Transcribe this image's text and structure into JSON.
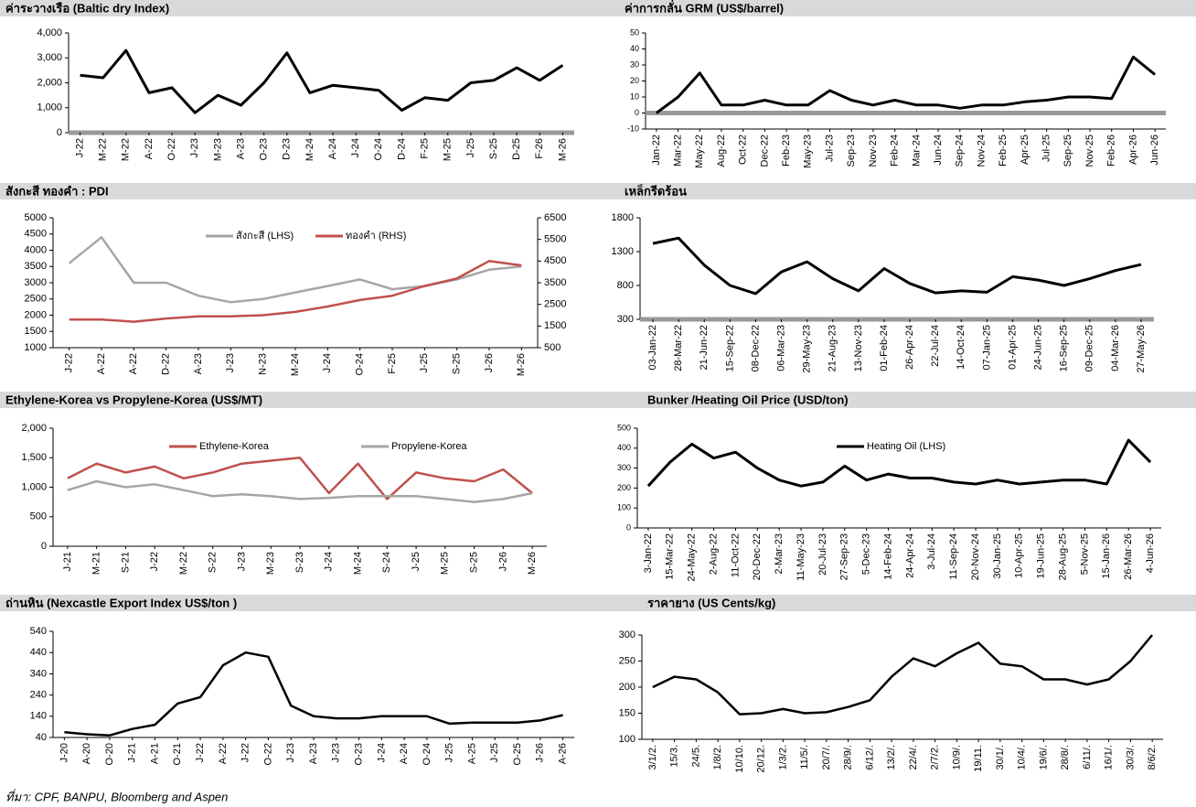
{
  "chart_data": [
    {
      "type": "line",
      "title": "ค่าระวางเรือ (Baltic dry Index)",
      "categories": [
        "J-22",
        "M-22",
        "M-22",
        "A-22",
        "O-22",
        "J-23",
        "M-23",
        "A-23",
        "O-23",
        "D-23",
        "M-24",
        "A-24",
        "J-24",
        "O-24",
        "D-24",
        "F-25",
        "M-25",
        "J-25",
        "S-25",
        "D-25",
        "F-26",
        "M-26"
      ],
      "series": [
        {
          "color": "#000000",
          "values": [
            2300,
            2200,
            3300,
            1600,
            1800,
            800,
            1500,
            1100,
            2000,
            3200,
            1600,
            1900,
            1800,
            1700,
            900,
            1400,
            1300,
            2000,
            2100,
            2600,
            2100,
            2700
          ]
        }
      ],
      "ylim": [
        0,
        4000
      ],
      "yticks": [
        0,
        {
          "value": 1000,
          "label": "1,000"
        },
        {
          "value": 2000,
          "label": "2,000"
        },
        {
          "value": 3000,
          "label": "3,000"
        },
        {
          "value": 4000,
          "label": "4,000"
        }
      ]
    },
    {
      "type": "line",
      "title": "ค่าการกลั่น GRM (US$/barrel)",
      "categories": [
        "Jan-22",
        "Mar-22",
        "May-22",
        "Aug-22",
        "Oct-22",
        "Dec-22",
        "Feb-23",
        "May-23",
        "Jul-23",
        "Sep-23",
        "Nov-23",
        "Feb-24",
        "Mar-24",
        "Jun-24",
        "Sep-24",
        "Nov-24",
        "Feb-25",
        "Apr-25",
        "Jul-25",
        "Sep-25",
        "Nov-25",
        "Feb-26",
        "Apr-26",
        "Jun-26"
      ],
      "series": [
        {
          "color": "#000000",
          "values": [
            0,
            10,
            25,
            5,
            5,
            8,
            5,
            5,
            14,
            8,
            5,
            8,
            5,
            5,
            3,
            5,
            5,
            7,
            8,
            10,
            10,
            9,
            35,
            24
          ]
        }
      ],
      "ylim": [
        -10,
        50
      ],
      "yticks": [
        -10,
        0,
        10,
        20,
        30,
        40,
        50
      ]
    },
    {
      "type": "line",
      "title": "สังกะสี ทองคำ : PDI",
      "categories": [
        "J-22",
        "A-22",
        "A-22",
        "D-22",
        "A-23",
        "J-23",
        "N-23",
        "M-24",
        "J-24",
        "O-24",
        "F-25",
        "J-25",
        "S-25",
        "J-26",
        "M-26"
      ],
      "series": [
        {
          "name": "สังกะสี (LHS)",
          "color": "#a6a6a6",
          "values": [
            3600,
            4400,
            3000,
            3000,
            2600,
            2400,
            2500,
            2700,
            2900,
            3100,
            2800,
            2900,
            3100,
            3400,
            3500
          ]
        },
        {
          "name": "ทองคำ (RHS)",
          "color": "#c0504d",
          "axis": "y2",
          "values": [
            1800,
            1800,
            1700,
            1850,
            1950,
            1950,
            2000,
            2150,
            2400,
            2700,
            2900,
            3350,
            3700,
            4500,
            4300
          ]
        }
      ],
      "ylim": [
        1000,
        5000
      ],
      "yticks": [
        1000,
        1500,
        2000,
        2500,
        3000,
        3500,
        4000,
        4500,
        5000
      ],
      "y2lim": [
        500,
        6500
      ],
      "y2ticks": [
        500,
        1500,
        2500,
        3500,
        4500,
        5500,
        6500
      ]
    },
    {
      "type": "line",
      "title": "เหล็กรีดร้อน",
      "categories": [
        "03-Jan-22",
        "28-Mar-22",
        "21-Jun-22",
        "15-Sep-22",
        "08-Dec-22",
        "06-Mar-23",
        "29-May-23",
        "21-Aug-23",
        "13-Nov-23",
        "01-Feb-24",
        "26-Apr-24",
        "22-Jul-24",
        "14-Oct-24",
        "07-Jan-25",
        "01-Apr-25",
        "24-Jun-25",
        "16-Sep-25",
        "09-Dec-25",
        "04-Mar-26",
        "27-May-26"
      ],
      "series": [
        {
          "color": "#000000",
          "values": [
            1420,
            1500,
            1100,
            800,
            680,
            1000,
            1150,
            900,
            720,
            1050,
            830,
            690,
            720,
            700,
            930,
            880,
            800,
            900,
            1020,
            1110
          ]
        }
      ],
      "ylim": [
        300,
        1800
      ],
      "yticks": [
        300,
        800,
        1300,
        1800
      ]
    },
    {
      "type": "line",
      "title": "Ethylene-Korea vs Propylene-Korea (US$/MT)",
      "categories": [
        "J-21",
        "M-21",
        "S-21",
        "J-22",
        "M-22",
        "S-22",
        "J-23",
        "M-23",
        "S-23",
        "J-24",
        "M-24",
        "S-24",
        "J-25",
        "M-25",
        "S-25",
        "J-26",
        "M-26"
      ],
      "series": [
        {
          "name": "Ethylene-Korea",
          "color": "#c0504d",
          "values": [
            1150,
            1400,
            1250,
            1350,
            1150,
            1250,
            1400,
            1450,
            1500,
            900,
            1400,
            800,
            1250,
            1150,
            1100,
            1300,
            900
          ]
        },
        {
          "name": "Propylene-Korea",
          "color": "#a6a6a6",
          "values": [
            950,
            1100,
            1000,
            1050,
            950,
            850,
            880,
            850,
            800,
            820,
            850,
            850,
            850,
            800,
            750,
            800,
            900
          ]
        }
      ],
      "ylim": [
        0,
        2000
      ],
      "yticks": [
        0,
        500,
        {
          "value": 1000,
          "label": "1,000"
        },
        {
          "value": 1500,
          "label": "1,500"
        },
        {
          "value": 2000,
          "label": "2,000"
        }
      ]
    },
    {
      "type": "line",
      "title": "Bunker /Heating Oil Price (USD/ton)",
      "categories": [
        "3-Jan-22",
        "15-Mar-22",
        "24-May-22",
        "2-Aug-22",
        "11-Oct-22",
        "20-Dec-22",
        "2-Mar-23",
        "11-May-23",
        "20-Jul-23",
        "27-Sep-23",
        "5-Dec-23",
        "14-Feb-24",
        "24-Apr-24",
        "3-Jul-24",
        "11-Sep-24",
        "20-Nov-24",
        "30-Jan-25",
        "10-Apr-25",
        "19-Jun-25",
        "28-Aug-25",
        "5-Nov-25",
        "15-Jan-26",
        "26-Mar-26",
        "4-Jun-26"
      ],
      "series": [
        {
          "name": "Heating Oil (LHS)",
          "color": "#000000",
          "values": [
            210,
            330,
            420,
            350,
            380,
            300,
            240,
            210,
            230,
            310,
            240,
            270,
            250,
            250,
            230,
            220,
            240,
            220,
            230,
            240,
            240,
            220,
            440,
            330
          ]
        }
      ],
      "ylim": [
        0,
        500
      ],
      "yticks": [
        0,
        100,
        200,
        300,
        400,
        500
      ]
    },
    {
      "type": "line",
      "title": "ถ่านหิน (Nexcastle Export Index  US$/ton )",
      "categories": [
        "J-20",
        "A-20",
        "O-20",
        "J-21",
        "A-21",
        "O-21",
        "J-22",
        "A-22",
        "J-22",
        "O-22",
        "J-23",
        "A-23",
        "J-23",
        "O-23",
        "J-24",
        "A-24",
        "O-24",
        "J-25",
        "A-25",
        "J-25",
        "O-25",
        "J-26",
        "A-26"
      ],
      "series": [
        {
          "color": "#000000",
          "values": [
            65,
            55,
            50,
            80,
            100,
            200,
            230,
            380,
            440,
            420,
            190,
            140,
            130,
            130,
            140,
            140,
            140,
            105,
            110,
            110,
            110,
            120,
            145
          ]
        }
      ],
      "ylim": [
        40,
        540
      ],
      "yticks": [
        40,
        140,
        240,
        340,
        440,
        540
      ]
    },
    {
      "type": "line",
      "title": "ราคายาง (US Cents/kg)",
      "categories": [
        "3/1/2.",
        "15/3.",
        "24/5.",
        "1/8/2.",
        "10/10.",
        "20/12.",
        "1/3/2.",
        "11/5/.",
        "20/7/.",
        "28/9/.",
        "6/12/.",
        "13/2/.",
        "22/4/.",
        "2/7/2.",
        "10/9/.",
        "19/11.",
        "30/1/.",
        "10/4/.",
        "19/6/.",
        "28/8/.",
        "6/11/.",
        "16/1/.",
        "30/3/.",
        "8/6/2."
      ],
      "series": [
        {
          "color": "#000000",
          "values": [
            200,
            220,
            215,
            190,
            148,
            150,
            158,
            150,
            152,
            162,
            175,
            220,
            255,
            240,
            265,
            285,
            245,
            240,
            215,
            215,
            205,
            215,
            250,
            300
          ]
        }
      ],
      "ylim": [
        100,
        300
      ],
      "yticks": [
        100,
        150,
        200,
        250,
        300
      ]
    }
  ],
  "source": "ที่มา: CPF, BANPU, Bloomberg and Aspen"
}
